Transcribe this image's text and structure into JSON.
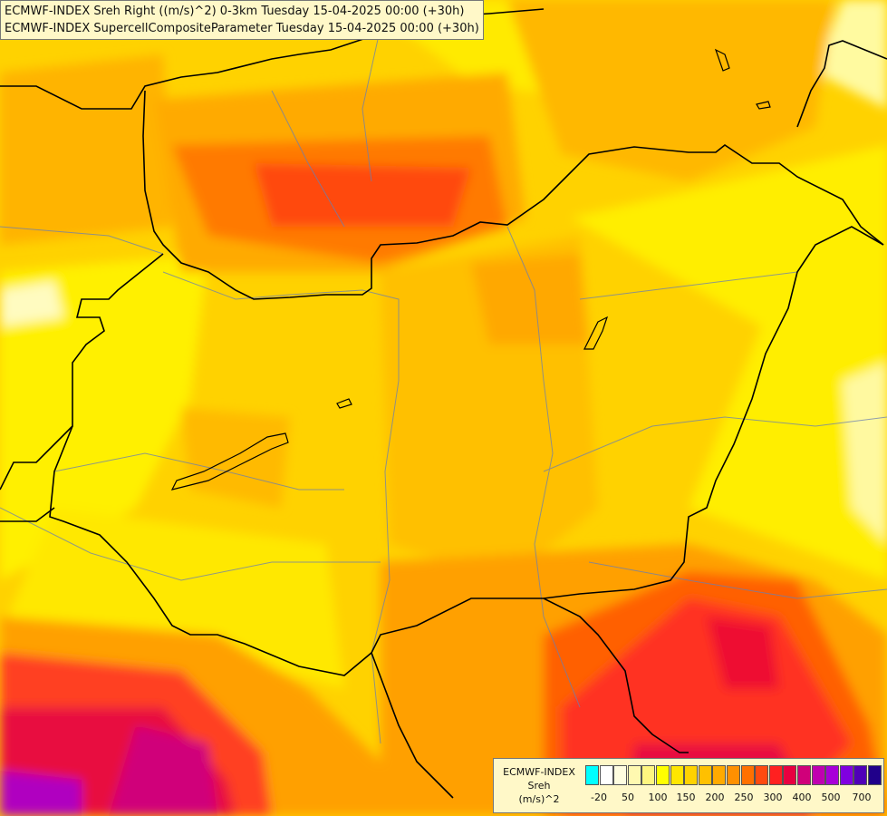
{
  "titles": {
    "line1": "ECMWF-INDEX Sreh Right ((m/s)^2) 0-3km Tuesday 15-04-2025 00:00 (+30h)",
    "line2": "ECMWF-INDEX SupercellCompositeParameter Tuesday 15-04-2025 00:00 (+30h)"
  },
  "legend": {
    "model": "ECMWF-INDEX",
    "variable": "Sreh",
    "unit": "(m/s)^2",
    "colors": [
      "#00ffff",
      "#ffffff",
      "#fffde0",
      "#fff9b0",
      "#fff580",
      "#ffff00",
      "#ffe600",
      "#ffd200",
      "#ffc000",
      "#ffaa00",
      "#ff9000",
      "#ff7000",
      "#ff4a10",
      "#ff2020",
      "#e80040",
      "#d0007a",
      "#c000b0",
      "#a800d8",
      "#8000e0",
      "#5000b8",
      "#20008a"
    ],
    "ticks": [
      "-20",
      "50",
      "100",
      "150",
      "200",
      "250",
      "300",
      "400",
      "500",
      "700"
    ]
  }
}
